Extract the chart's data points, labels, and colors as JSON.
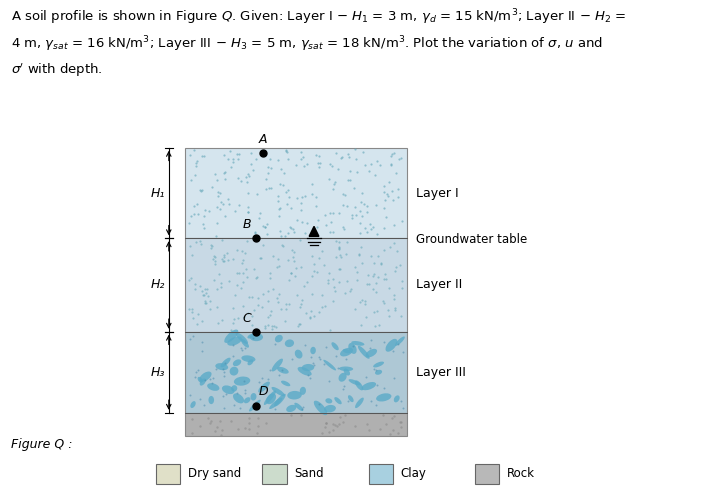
{
  "figure_label": "Figure Q :",
  "layer1_label": "Layer I",
  "layer2_label": "Layer II",
  "layer3_label": "Layer III",
  "gwt_label": "Groundwater table",
  "h1_label": "H₁",
  "h2_label": "H₂",
  "h3_label": "H₃",
  "point_A": "A",
  "point_B": "B",
  "point_C": "C",
  "point_D": "D",
  "layer1_color": "#d8e8ee",
  "layer2_color": "#ccdde8",
  "layer3_color": "#b8cdd5",
  "rock_color": "#b5b5b5",
  "legend_items": [
    "Dry sand",
    "Sand",
    "Clay",
    "Rock"
  ],
  "legend_colors": [
    "#e0e0c8",
    "#ccdccc",
    "#a8d0e0",
    "#b8b8b8"
  ],
  "bg_color": "#ffffff",
  "text_color": "#000000"
}
